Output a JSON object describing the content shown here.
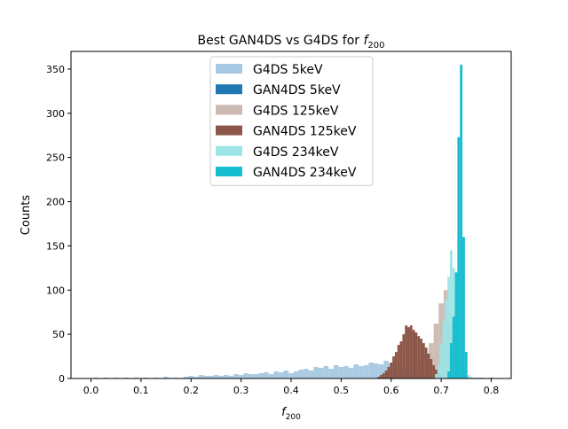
{
  "chart_data": {
    "type": "bar",
    "title": "Best GAN4DS vs G4DS for f200",
    "title_text": "Best GAN4DS vs G4DS for ",
    "title_math_symbol": "f",
    "title_math_subscript": "200",
    "xlabel_symbol": "f",
    "xlabel_subscript": "200",
    "ylabel": "Counts",
    "xlim": [
      -0.04,
      0.84
    ],
    "ylim": [
      0,
      370
    ],
    "xticks": [
      0.0,
      0.1,
      0.2,
      0.3,
      0.4,
      0.5,
      0.6,
      0.7,
      0.8
    ],
    "xtick_labels": [
      "0.0",
      "0.1",
      "0.2",
      "0.3",
      "0.4",
      "0.5",
      "0.6",
      "0.7",
      "0.8"
    ],
    "yticks": [
      0,
      50,
      100,
      150,
      200,
      250,
      300,
      350
    ],
    "ytick_labels": [
      "0",
      "50",
      "100",
      "150",
      "200",
      "250",
      "300",
      "350"
    ],
    "grid": false,
    "legend_position": "top-center",
    "series": [
      {
        "name": "G4DS 5keV",
        "color": "#a6c8e2",
        "x": [
          0.01,
          0.03,
          0.05,
          0.07,
          0.09,
          0.11,
          0.13,
          0.15,
          0.17,
          0.19,
          0.2,
          0.21,
          0.22,
          0.23,
          0.24,
          0.25,
          0.26,
          0.27,
          0.28,
          0.29,
          0.3,
          0.31,
          0.32,
          0.33,
          0.34,
          0.35,
          0.36,
          0.37,
          0.38,
          0.39,
          0.4,
          0.41,
          0.42,
          0.43,
          0.44,
          0.45,
          0.46,
          0.47,
          0.48,
          0.49,
          0.5,
          0.51,
          0.52,
          0.53,
          0.54,
          0.55,
          0.56,
          0.57,
          0.58,
          0.59,
          0.6,
          0.61,
          0.62,
          0.63,
          0.64,
          0.65,
          0.66,
          0.67,
          0.68,
          0.69,
          0.7,
          0.71,
          0.72,
          0.73,
          0.74,
          0.75,
          0.76,
          0.77,
          0.78,
          0.8
        ],
        "values": [
          1,
          1,
          1,
          1,
          1,
          1,
          1,
          2,
          1,
          2,
          3,
          2,
          4,
          3,
          3,
          4,
          3,
          4,
          3,
          5,
          4,
          6,
          5,
          5,
          6,
          7,
          5,
          8,
          7,
          9,
          6,
          8,
          10,
          11,
          9,
          13,
          12,
          14,
          11,
          15,
          13,
          14,
          12,
          16,
          14,
          15,
          18,
          17,
          16,
          20,
          17,
          16,
          12,
          10,
          9,
          8,
          7,
          6,
          5,
          4,
          4,
          3,
          3,
          2,
          2,
          2,
          1,
          1,
          1,
          1
        ]
      },
      {
        "name": "GAN4DS 5keV",
        "color": "#1f77b4",
        "x": [],
        "values": []
      },
      {
        "name": "G4DS 125keV",
        "color": "#cbb9b2",
        "x": [
          0.65,
          0.66,
          0.67,
          0.68,
          0.69,
          0.7,
          0.71,
          0.72,
          0.73,
          0.74
        ],
        "values": [
          15,
          22,
          28,
          40,
          62,
          85,
          100,
          60,
          30,
          10
        ]
      },
      {
        "name": "GAN4DS 125keV",
        "color": "#8c5649",
        "x": [
          0.575,
          0.58,
          0.585,
          0.59,
          0.595,
          0.6,
          0.605,
          0.61,
          0.615,
          0.62,
          0.625,
          0.63,
          0.635,
          0.64,
          0.645,
          0.65,
          0.655,
          0.66,
          0.665,
          0.67,
          0.675,
          0.68,
          0.685,
          0.69,
          0.695,
          0.7,
          0.705,
          0.71
        ],
        "values": [
          2,
          4,
          6,
          9,
          13,
          18,
          25,
          30,
          38,
          42,
          50,
          60,
          58,
          60,
          55,
          52,
          48,
          45,
          40,
          35,
          28,
          22,
          15,
          10,
          6,
          3,
          2,
          1
        ]
      },
      {
        "name": "G4DS 234keV",
        "color": "#9de4e6",
        "x": [
          0.69,
          0.695,
          0.7,
          0.705,
          0.71,
          0.715,
          0.72,
          0.725,
          0.73,
          0.735,
          0.74,
          0.745,
          0.75,
          0.755,
          0.76
        ],
        "values": [
          5,
          15,
          40,
          65,
          90,
          115,
          145,
          125,
          100,
          70,
          40,
          20,
          8,
          4,
          2
        ]
      },
      {
        "name": "GAN4DS 234keV",
        "color": "#17becf",
        "x": [
          0.715,
          0.72,
          0.725,
          0.73,
          0.735,
          0.74,
          0.745,
          0.75
        ],
        "values": [
          8,
          40,
          70,
          120,
          273,
          355,
          160,
          30
        ]
      }
    ]
  }
}
